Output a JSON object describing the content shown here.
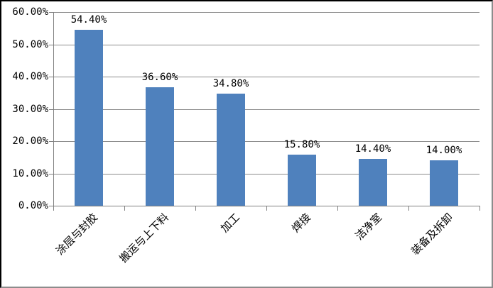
{
  "chart_data": {
    "type": "bar",
    "title": "",
    "xlabel": "",
    "ylabel": "",
    "categories": [
      "涂层与封胶",
      "搬运与上下料",
      "加工",
      "焊接",
      "洁净室",
      "装备及拆卸"
    ],
    "values": [
      54.4,
      36.6,
      34.8,
      15.8,
      14.4,
      14.0
    ],
    "value_labels": [
      "54.40%",
      "36.60%",
      "34.80%",
      "15.80%",
      "14.40%",
      "14.00%"
    ],
    "y_tick_labels": [
      "0.00%",
      "10.00%",
      "20.00%",
      "30.00%",
      "40.00%",
      "50.00%",
      "60.00%"
    ],
    "ylim": [
      0,
      60
    ],
    "y_tick_step": 10,
    "grid": true,
    "legend_position": "none",
    "colors": {
      "bar": "#4F81BD",
      "gridline": "#8C8C8C",
      "axis": "#808080",
      "text": "#000000",
      "background": "#FFFFFF",
      "border_top_left": "#000000",
      "border_bottom_right": "#8C8C8C"
    }
  }
}
